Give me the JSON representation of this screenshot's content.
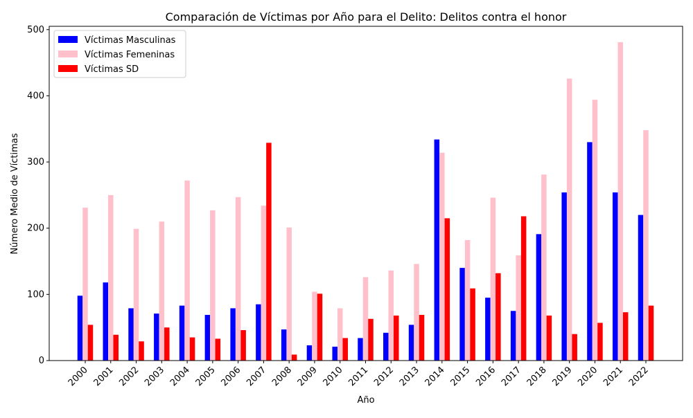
{
  "chart_data": {
    "type": "bar",
    "title": "Comparación de Víctimas por Año para el Delito: Delitos contra el honor",
    "xlabel": "Año",
    "ylabel": "Número Medio de Víctimas",
    "ylim": [
      0,
      505
    ],
    "yticks": [
      0,
      100,
      200,
      300,
      400,
      500
    ],
    "grid": false,
    "legend_position": "top-left",
    "categories": [
      "2000",
      "2001",
      "2002",
      "2003",
      "2004",
      "2005",
      "2006",
      "2007",
      "2008",
      "2009",
      "2010",
      "2011",
      "2012",
      "2013",
      "2014",
      "2015",
      "2016",
      "2017",
      "2018",
      "2019",
      "2020",
      "2021",
      "2022"
    ],
    "series": [
      {
        "name": "Víctimas Masculinas",
        "color": "#0000ff",
        "values": [
          98,
          118,
          79,
          71,
          83,
          69,
          79,
          85,
          47,
          23,
          21,
          34,
          42,
          54,
          334,
          140,
          95,
          75,
          191,
          254,
          330,
          254,
          220
        ]
      },
      {
        "name": "Víctimas Femeninas",
        "color": "#ffc0cb",
        "values": [
          231,
          250,
          199,
          210,
          272,
          227,
          247,
          234,
          201,
          104,
          79,
          126,
          136,
          146,
          314,
          182,
          246,
          159,
          281,
          426,
          394,
          481,
          348
        ]
      },
      {
        "name": "Víctimas SD",
        "color": "#ff0000",
        "values": [
          54,
          39,
          29,
          50,
          35,
          33,
          46,
          329,
          9,
          101,
          34,
          63,
          68,
          69,
          215,
          109,
          132,
          218,
          68,
          40,
          57,
          73,
          83
        ]
      }
    ]
  }
}
